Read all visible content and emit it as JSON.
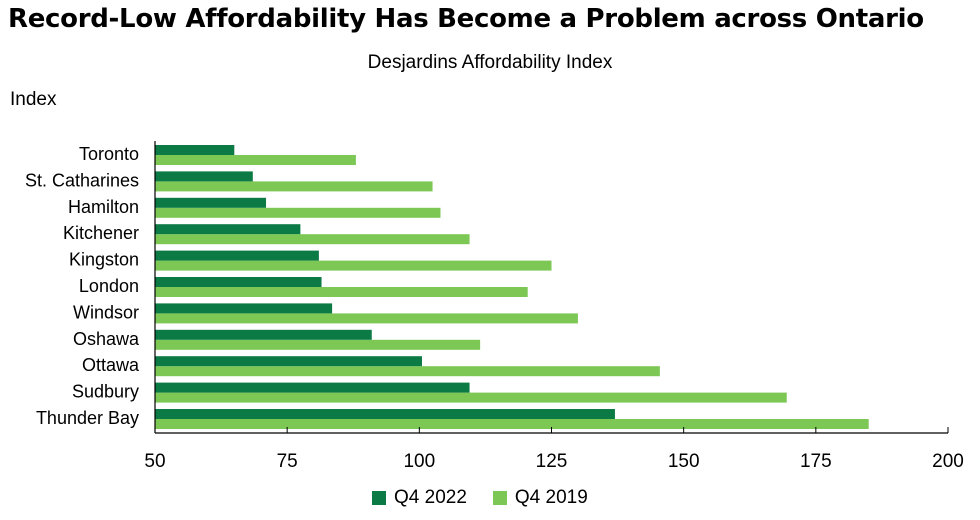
{
  "chart_data": {
    "type": "bar",
    "orientation": "horizontal",
    "title": "Record-Low Affordability Has Become a Problem across Ontario",
    "subtitle": "Desjardins Affordability Index",
    "ylabel": "Index",
    "categories": [
      "Toronto",
      "St. Catharines",
      "Hamilton",
      "Kitchener",
      "Kingston",
      "London",
      "Windsor",
      "Oshawa",
      "Ottawa",
      "Sudbury",
      "Thunder Bay"
    ],
    "series": [
      {
        "name": "Q4 2022",
        "color": "#0b7a44",
        "values": [
          65,
          68.5,
          71,
          77.5,
          81,
          81.5,
          83.5,
          91,
          100.5,
          109.5,
          137
        ]
      },
      {
        "name": "Q4 2019",
        "color": "#7dc855",
        "values": [
          88,
          102.5,
          104,
          109.5,
          125,
          120.5,
          130,
          111.5,
          145.5,
          169.5,
          185
        ]
      }
    ],
    "xlim": [
      50,
      200
    ],
    "xticks": [
      50,
      75,
      100,
      125,
      150,
      175,
      200
    ],
    "legend_position": "bottom"
  }
}
